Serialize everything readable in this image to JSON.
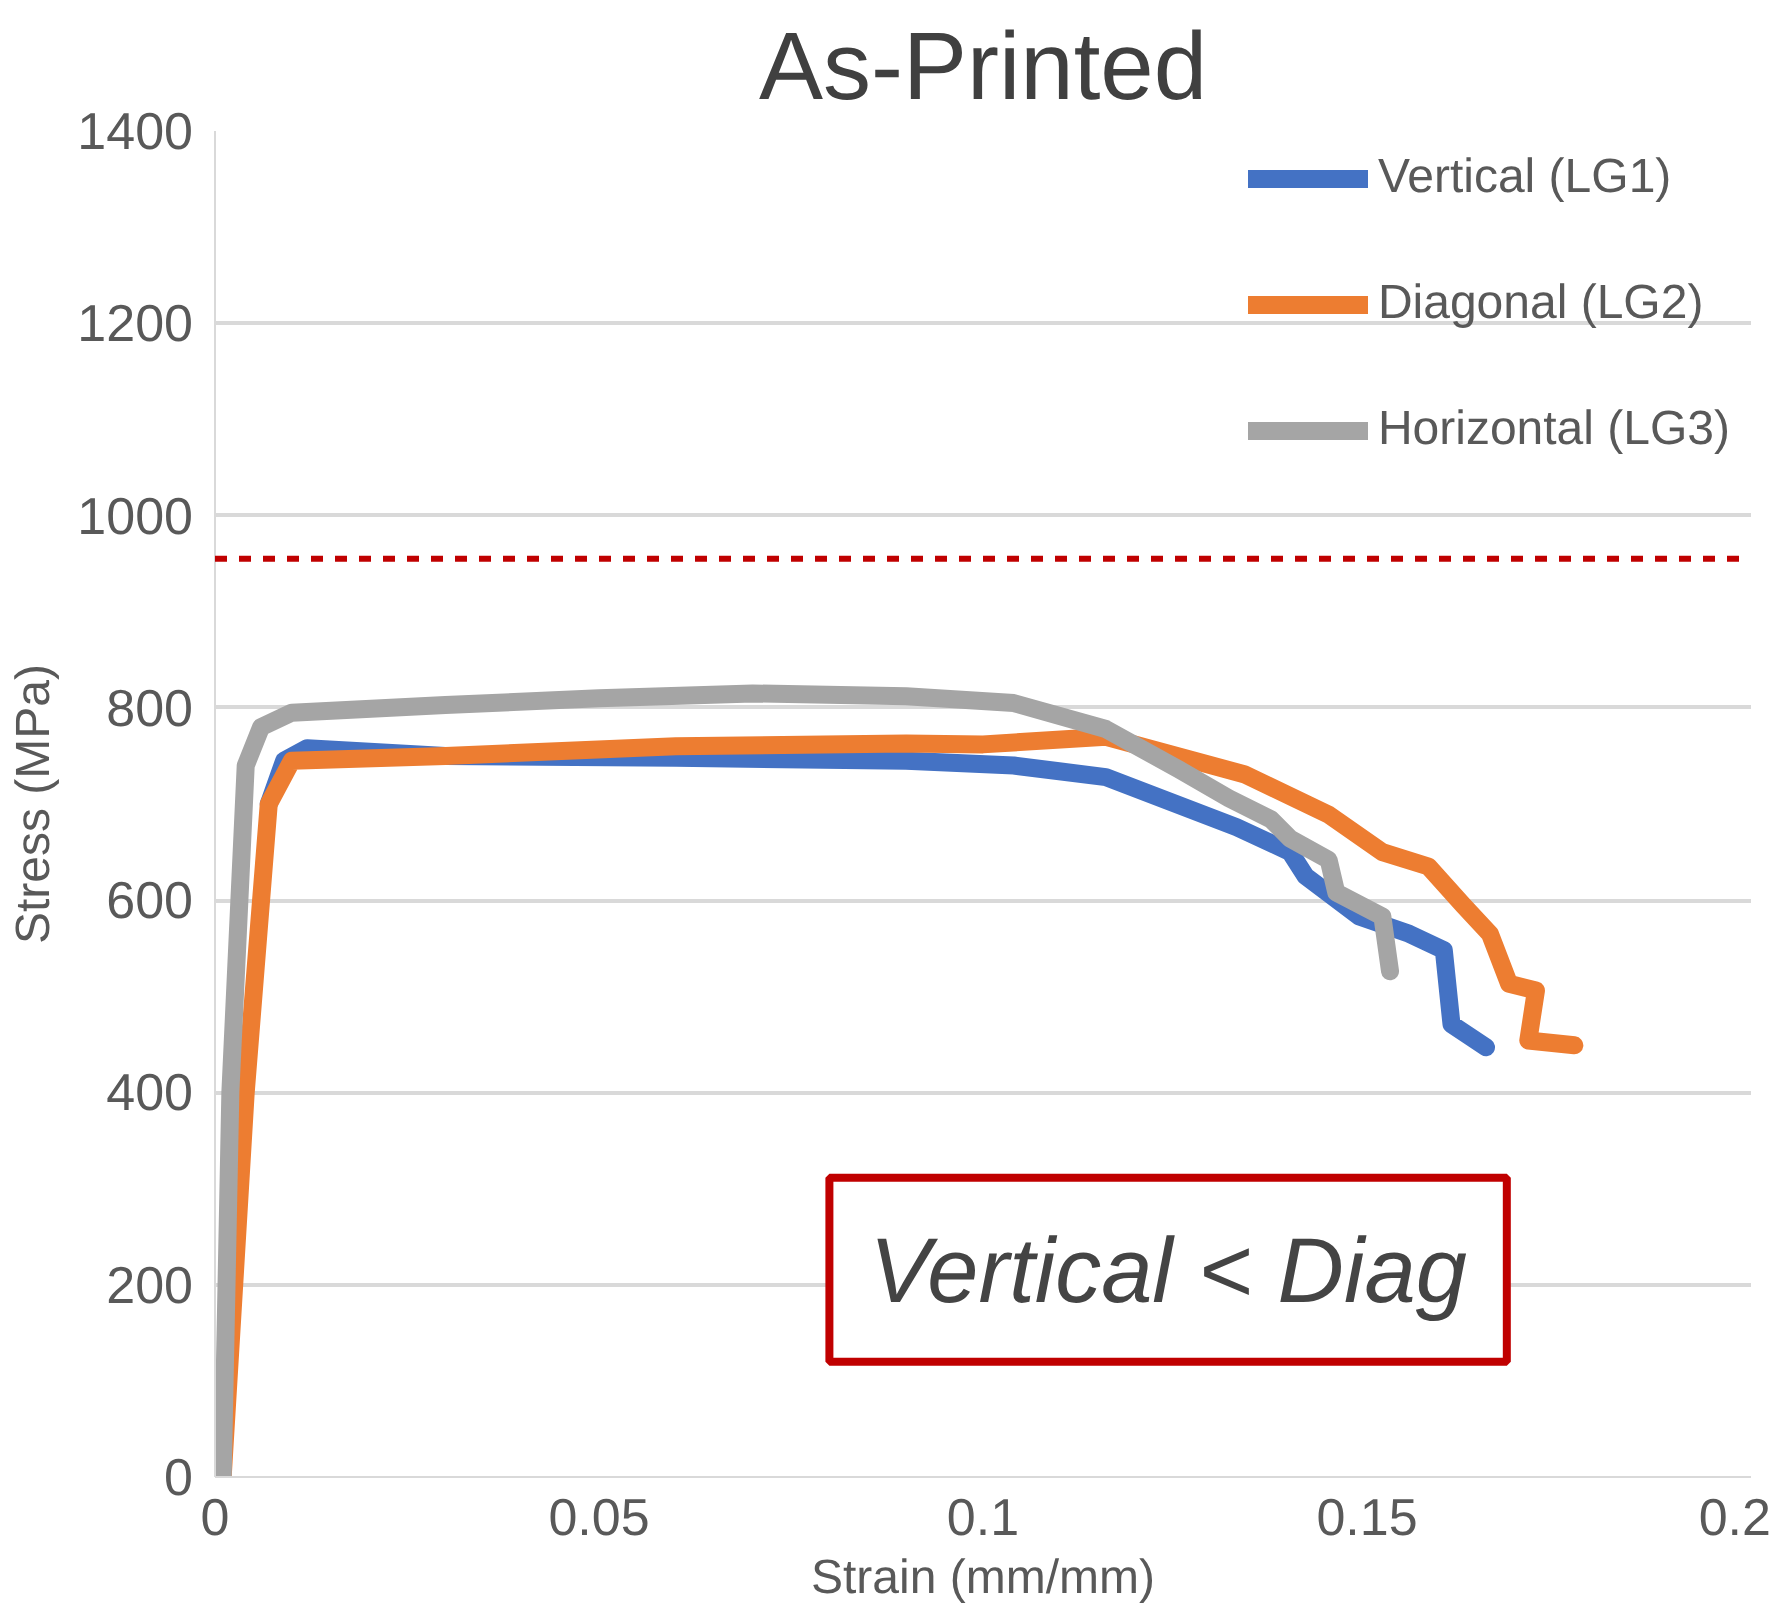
{
  "chart_data": {
    "type": "line",
    "title": "As-Printed",
    "xlabel": "Strain (mm/mm)",
    "ylabel": "Stress (MPa)",
    "xlim": [
      0,
      0.2
    ],
    "xticks": [
      0,
      0.05,
      0.1,
      0.15,
      0.2
    ],
    "ylim": [
      0,
      1400
    ],
    "yticks": [
      0,
      200,
      400,
      600,
      800,
      1000,
      1200,
      1400
    ],
    "grid": "y",
    "legend": "top right",
    "line_style": "solid",
    "marker": "none",
    "series": [
      {
        "name": "Vertical (LG1)",
        "color": "#4472c4",
        "x": [
          0.007,
          0.009,
          0.012,
          0.03,
          0.06,
          0.09,
          0.104,
          0.116,
          0.133,
          0.14,
          0.142,
          0.149,
          0.1555,
          0.16,
          0.161,
          0.1655
        ],
        "values": [
          700,
          745,
          758,
          750,
          748,
          745,
          740,
          728,
          676,
          650,
          625,
          583,
          565,
          548,
          471,
          447
        ]
      },
      {
        "name": "Diagonal (LG2)",
        "color": "#ed7d31",
        "x": [
          0.001,
          0.004,
          0.007,
          0.01,
          0.03,
          0.06,
          0.09,
          0.1,
          0.116,
          0.134,
          0.145,
          0.152,
          0.158,
          0.1625,
          0.166,
          0.1685,
          0.172,
          0.171,
          0.177
        ],
        "values": [
          0,
          400,
          700,
          745,
          750,
          760,
          763,
          762,
          770,
          731,
          689,
          650,
          635,
          595,
          565,
          513,
          506,
          454,
          449
        ]
      },
      {
        "name": "Horizontal (LG3)",
        "color": "#a5a5a5",
        "x": [
          0.001,
          0.002,
          0.004,
          0.006,
          0.01,
          0.03,
          0.05,
          0.07,
          0.09,
          0.104,
          0.116,
          0.1255,
          0.132,
          0.1375,
          0.14,
          0.145,
          0.146,
          0.152,
          0.153
        ],
        "values": [
          0,
          400,
          740,
          780,
          795,
          803,
          810,
          815,
          812,
          805,
          778,
          736,
          706,
          684,
          664,
          642,
          608,
          583,
          526
        ]
      }
    ],
    "ref_lines": [
      {
        "axis": "y",
        "value": 955,
        "color": "#c00000",
        "line_style": "dashed"
      }
    ],
    "annotations": [
      "Vertical < Diag"
    ]
  }
}
